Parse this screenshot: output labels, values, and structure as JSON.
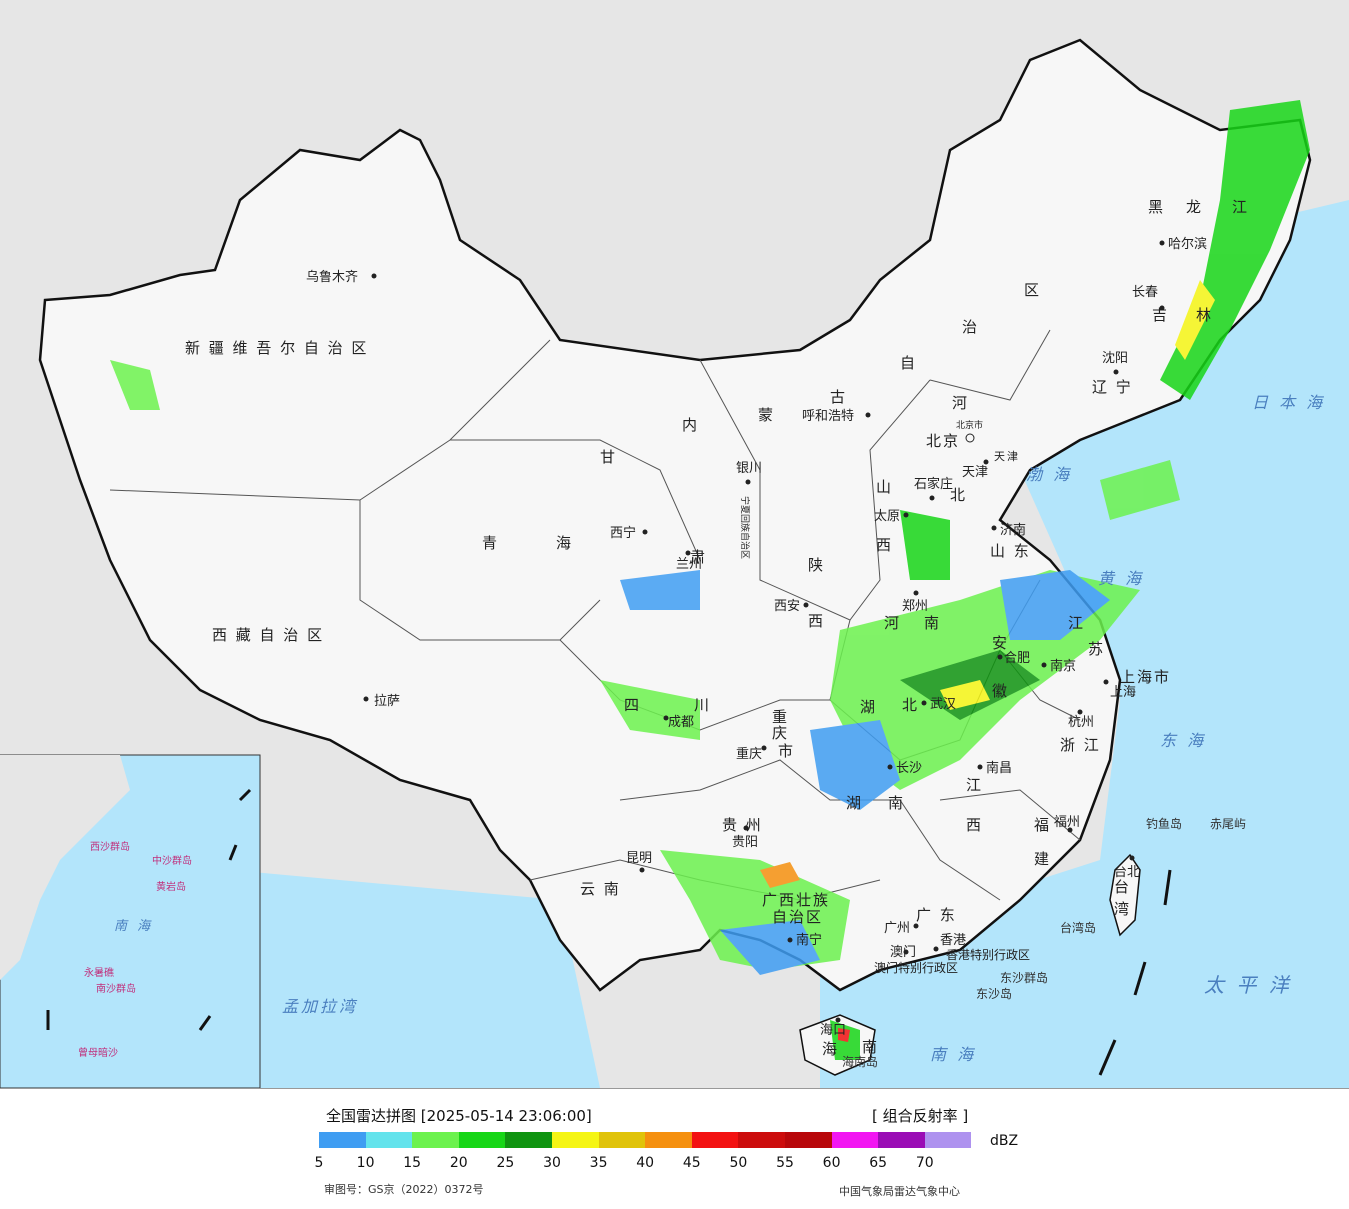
{
  "map": {
    "provinces": [
      {
        "id": "xinjiang",
        "text": "新 疆 维 吾 尔 自 治 区"
      },
      {
        "id": "xizang",
        "text": "西 藏 自 治 区"
      },
      {
        "id": "qinghai1",
        "text": "青"
      },
      {
        "id": "qinghai2",
        "text": "海"
      },
      {
        "id": "gansu1",
        "text": "甘"
      },
      {
        "id": "gansu2",
        "text": "肃"
      },
      {
        "id": "neimeng1",
        "text": "内"
      },
      {
        "id": "neimeng2",
        "text": "蒙"
      },
      {
        "id": "neimeng3",
        "text": "古"
      },
      {
        "id": "neimeng4",
        "text": "自"
      },
      {
        "id": "neimeng5",
        "text": "治"
      },
      {
        "id": "neimeng6",
        "text": "区"
      },
      {
        "id": "heilongjiang1",
        "text": "黑"
      },
      {
        "id": "heilongjiang2",
        "text": "龙"
      },
      {
        "id": "heilongjiang3",
        "text": "江"
      },
      {
        "id": "jilin1",
        "text": "吉"
      },
      {
        "id": "jilin2",
        "text": "林"
      },
      {
        "id": "liaoning",
        "text": "辽 宁"
      },
      {
        "id": "hebei1",
        "text": "河"
      },
      {
        "id": "hebei2",
        "text": "北"
      },
      {
        "id": "shanxi1",
        "text": "山"
      },
      {
        "id": "shanxi2",
        "text": "西"
      },
      {
        "id": "shandong",
        "text": "山 东"
      },
      {
        "id": "shaanxi1",
        "text": "陕"
      },
      {
        "id": "shaanxi2",
        "text": "西"
      },
      {
        "id": "henan1",
        "text": "河"
      },
      {
        "id": "henan2",
        "text": "南"
      },
      {
        "id": "jiangsu1",
        "text": "江"
      },
      {
        "id": "jiangsu2",
        "text": "苏"
      },
      {
        "id": "anhui1",
        "text": "安"
      },
      {
        "id": "anhui2",
        "text": "徽"
      },
      {
        "id": "sichuan1",
        "text": "四"
      },
      {
        "id": "sichuan2",
        "text": "川"
      },
      {
        "id": "chongqing1",
        "text": "重"
      },
      {
        "id": "chongqing2",
        "text": "庆"
      },
      {
        "id": "chongqing3",
        "text": "市"
      },
      {
        "id": "hubei1",
        "text": "湖"
      },
      {
        "id": "hubei2",
        "text": "北"
      },
      {
        "id": "hunan1",
        "text": "湖"
      },
      {
        "id": "hunan2",
        "text": "南"
      },
      {
        "id": "jiangxi1",
        "text": "江"
      },
      {
        "id": "jiangxi2",
        "text": "西"
      },
      {
        "id": "zhejiang",
        "text": "浙 江"
      },
      {
        "id": "fujian1",
        "text": "福"
      },
      {
        "id": "fujian2",
        "text": "建"
      },
      {
        "id": "guizhou",
        "text": "贵 州"
      },
      {
        "id": "yunnan",
        "text": "云 南"
      },
      {
        "id": "guangxi1",
        "text": "广西壮族"
      },
      {
        "id": "guangxi2",
        "text": "自治区"
      },
      {
        "id": "guangdong",
        "text": "广 东"
      },
      {
        "id": "hainan1",
        "text": "海"
      },
      {
        "id": "hainan2",
        "text": "南"
      },
      {
        "id": "taiwan1",
        "text": "台"
      },
      {
        "id": "taiwan2",
        "text": "湾"
      },
      {
        "id": "ningxia",
        "text": "宁夏回族自治区"
      },
      {
        "id": "shanghai",
        "text": "上海市"
      },
      {
        "id": "tianjin",
        "text": "天津"
      },
      {
        "id": "beijing",
        "text": "北京"
      },
      {
        "id": "hk",
        "text": "香港特别行政区"
      },
      {
        "id": "macau",
        "text": "澳门特别行政区"
      }
    ],
    "cities": [
      {
        "id": "urumqi",
        "text": "乌鲁木齐"
      },
      {
        "id": "lhasa",
        "text": "拉萨"
      },
      {
        "id": "xining",
        "text": "西宁"
      },
      {
        "id": "lanzhou",
        "text": "兰州"
      },
      {
        "id": "yinchuan",
        "text": "银川"
      },
      {
        "id": "hohhot",
        "text": "呼和浩特"
      },
      {
        "id": "harbin",
        "text": "哈尔滨"
      },
      {
        "id": "changchun",
        "text": "长春"
      },
      {
        "id": "shenyang",
        "text": "沈阳"
      },
      {
        "id": "beijing_c",
        "text": "北京市"
      },
      {
        "id": "tianjin_c",
        "text": "天津"
      },
      {
        "id": "shijiazhuang",
        "text": "石家庄"
      },
      {
        "id": "taiyuan",
        "text": "太原"
      },
      {
        "id": "jinan",
        "text": "济南"
      },
      {
        "id": "zhengzhou",
        "text": "郑州"
      },
      {
        "id": "xian",
        "text": "西安"
      },
      {
        "id": "hefei",
        "text": "合肥"
      },
      {
        "id": "nanjing",
        "text": "南京"
      },
      {
        "id": "shanghai_c",
        "text": "上海"
      },
      {
        "id": "hangzhou",
        "text": "杭州"
      },
      {
        "id": "wuhan",
        "text": "武汉"
      },
      {
        "id": "chengdu",
        "text": "成都"
      },
      {
        "id": "chongqing_c",
        "text": "重庆"
      },
      {
        "id": "changsha",
        "text": "长沙"
      },
      {
        "id": "nanchang",
        "text": "南昌"
      },
      {
        "id": "fuzhou",
        "text": "福州"
      },
      {
        "id": "guiyang",
        "text": "贵阳"
      },
      {
        "id": "kunming",
        "text": "昆明"
      },
      {
        "id": "nanning",
        "text": "南宁"
      },
      {
        "id": "guangzhou",
        "text": "广州"
      },
      {
        "id": "hongkong",
        "text": "香港"
      },
      {
        "id": "aomen",
        "text": "澳门"
      },
      {
        "id": "haikou",
        "text": "海口"
      },
      {
        "id": "taibei",
        "text": "台北"
      }
    ],
    "seas": [
      {
        "id": "riben",
        "text": "日 本 海"
      },
      {
        "id": "bohai",
        "text": "渤 海"
      },
      {
        "id": "huanghai",
        "text": "黄 海"
      },
      {
        "id": "donghai",
        "text": "东 海"
      },
      {
        "id": "taipingyang",
        "text": "太 平 洋"
      },
      {
        "id": "nanhai",
        "text": "南 海"
      },
      {
        "id": "mengjiala",
        "text": "孟加拉湾"
      },
      {
        "id": "nanhai_inset",
        "text": "南 海"
      }
    ],
    "islands": [
      {
        "id": "diaoyu",
        "text": "钓鱼岛"
      },
      {
        "id": "chiwei",
        "text": "赤尾屿"
      },
      {
        "id": "taiwan_isl",
        "text": "台湾岛"
      },
      {
        "id": "hainan_isl",
        "text": "海南岛"
      },
      {
        "id": "dongsha_qd",
        "text": "东沙群岛"
      },
      {
        "id": "dongsha",
        "text": "东沙岛"
      }
    ],
    "inset_labels": [
      {
        "id": "i_xisha",
        "text": "西沙群岛"
      },
      {
        "id": "i_zhongsha",
        "text": "中沙群岛"
      },
      {
        "id": "i_huangyan",
        "text": "黄岩岛"
      },
      {
        "id": "i_nansha",
        "text": "南沙群岛"
      },
      {
        "id": "i_zengmu",
        "text": "曾母暗沙"
      },
      {
        "id": "i_yongshu",
        "text": "永暑礁"
      }
    ]
  },
  "legend": {
    "title": "全国雷达拼图 [2025-05-14 23:06:00]",
    "product": "[ 组合反射率 ]",
    "unit": "dBZ",
    "ticks": [
      "5",
      "10",
      "15",
      "20",
      "25",
      "30",
      "35",
      "40",
      "45",
      "50",
      "55",
      "60",
      "65",
      "70"
    ],
    "colors": [
      "#3f9df2",
      "#63e3ec",
      "#6cf24e",
      "#17d617",
      "#0f9410",
      "#f5f515",
      "#e0c30a",
      "#f5900f",
      "#f31212",
      "#cc0c0c",
      "#b8070a",
      "#f216f2",
      "#9a0cb5",
      "#ae92ef"
    ],
    "approval": "审图号：GS京（2022）0372号",
    "center": "中国气象局雷达气象中心"
  }
}
